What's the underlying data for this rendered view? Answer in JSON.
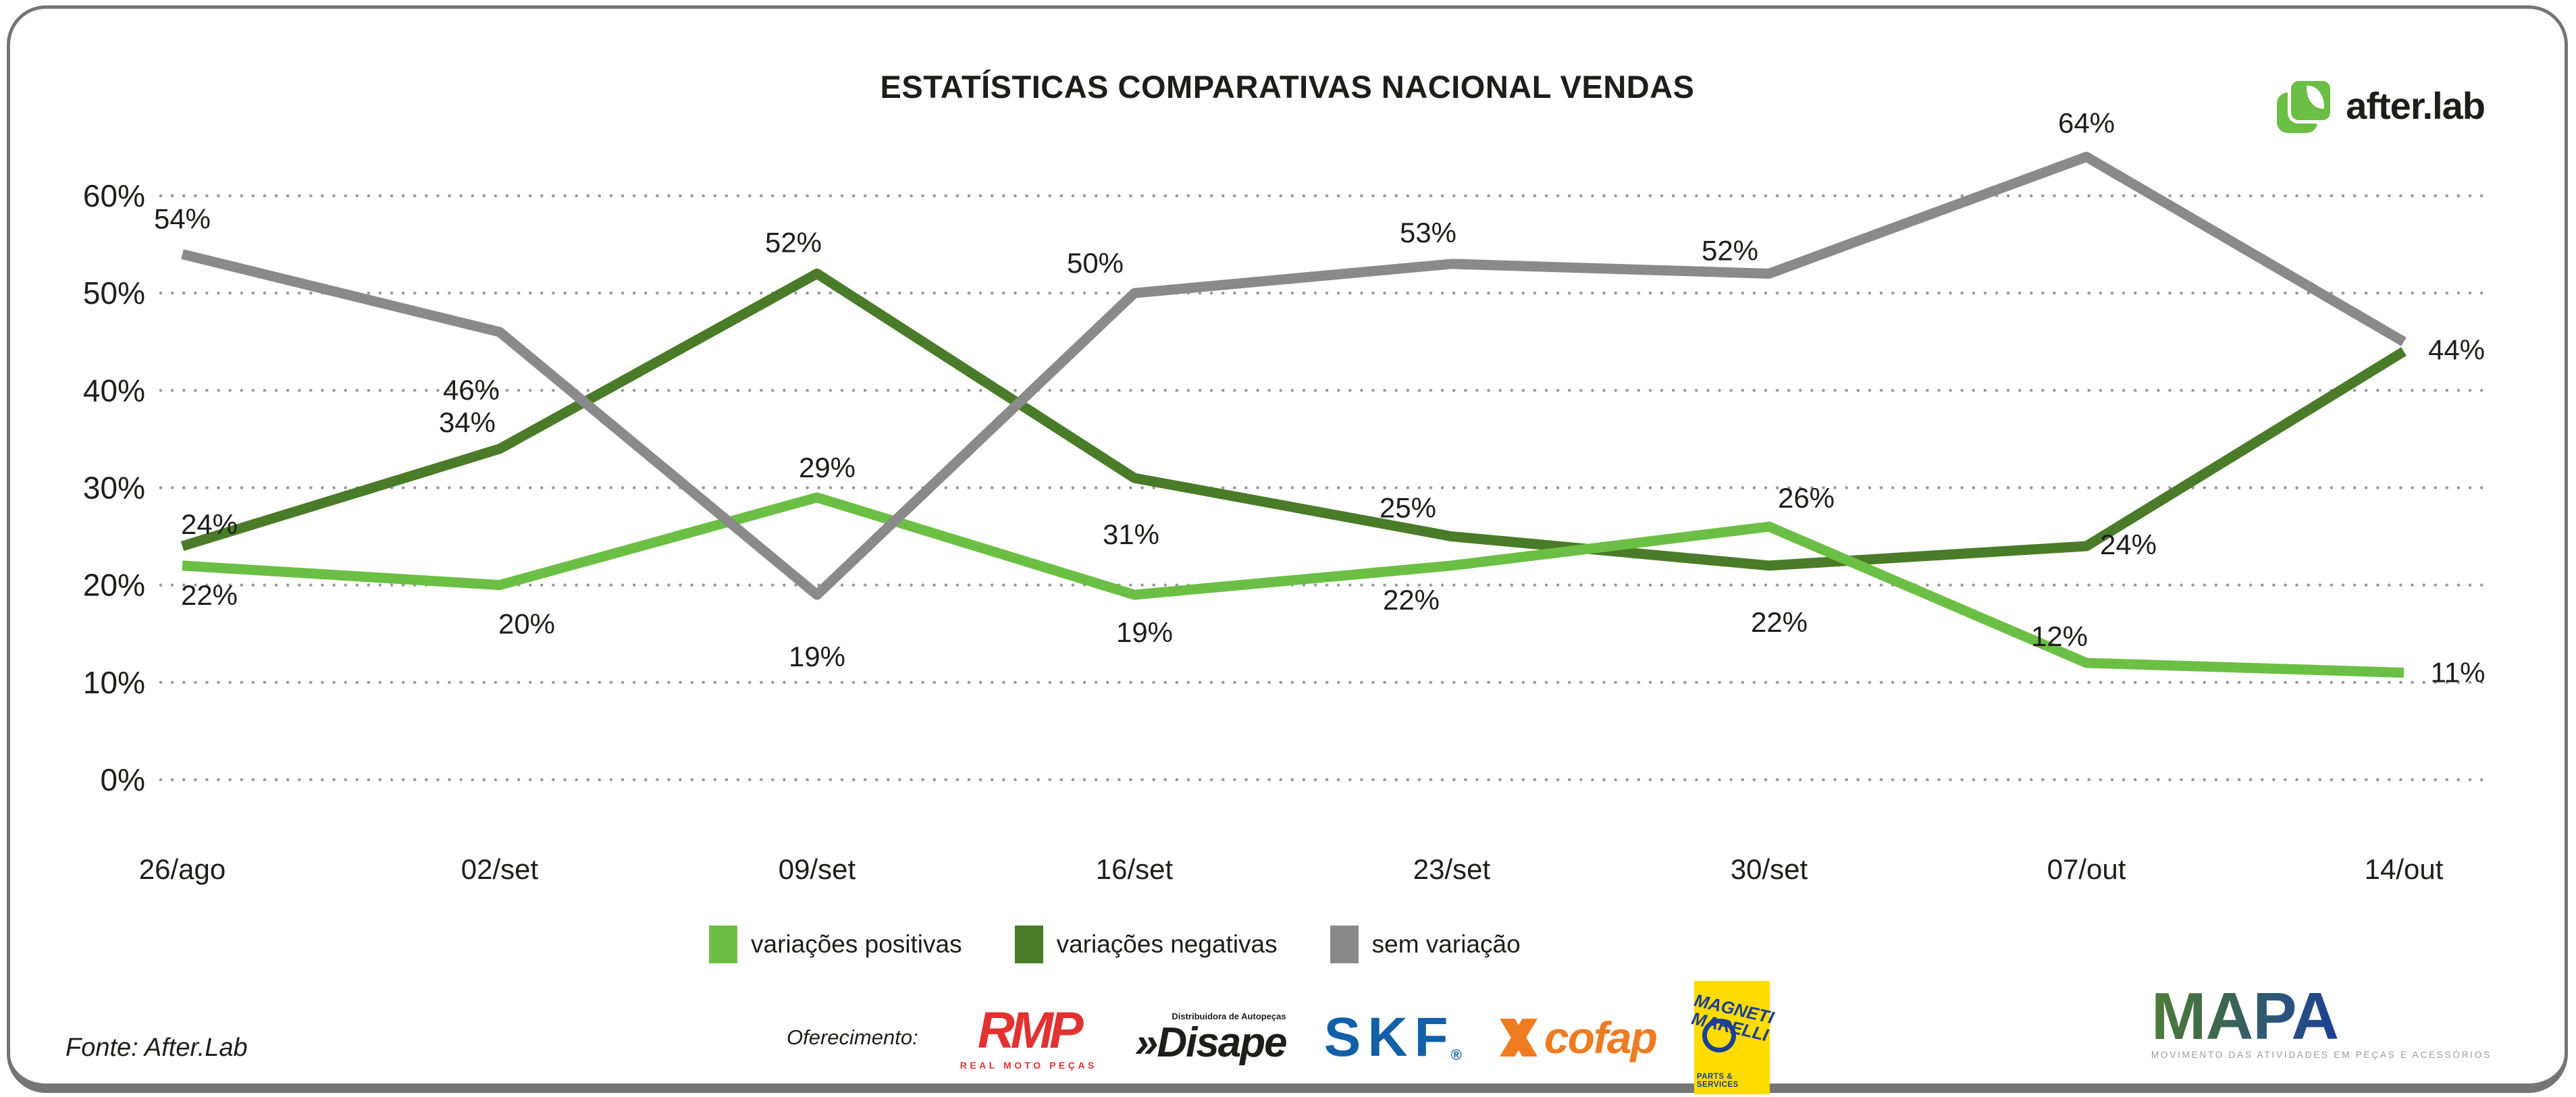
{
  "card": {
    "title": "ESTATÍSTICAS COMPARATIVAS NACIONAL VENDAS",
    "brand": {
      "name": "after.lab"
    },
    "footer": {
      "fonte": "Fonte: After.Lab",
      "oferecimento_label": "Oferecimento:",
      "sponsors": {
        "rmp": {
          "name": "RMP",
          "subtitle": "REAL MOTO PEÇAS"
        },
        "disape": {
          "name": "Disape",
          "prefix": "»",
          "subtitle": "Distribuidora de Autopeças"
        },
        "skf": {
          "name": "SKF",
          "registered": "®"
        },
        "cofap": {
          "name": "cofap"
        },
        "magneti": {
          "line1": "MAGNETI",
          "line2": "MARELLI",
          "subtitle": "PARTS & SERVICES"
        },
        "mapa": {
          "name": "MAPA",
          "subtitle": "MOVIMENTO DAS ATIVIDADES EM PEÇAS E ACESSÓRIOS"
        }
      }
    }
  },
  "chart_data": {
    "type": "line",
    "title": "ESTATÍSTICAS COMPARATIVAS NACIONAL VENDAS",
    "categories": [
      "26/ago",
      "02/set",
      "09/set",
      "16/set",
      "23/set",
      "30/set",
      "07/out",
      "14/out"
    ],
    "y_ticks": [
      "60%",
      "50%",
      "40%",
      "30%",
      "20%",
      "10%",
      "0%"
    ],
    "ylim": [
      0,
      60
    ],
    "grid": "horizontal-dotted",
    "legend_position": "bottom",
    "series": [
      {
        "name": "variações positivas",
        "color": "#6CBF45",
        "values": [
          22,
          20,
          29,
          19,
          22,
          26,
          12,
          11
        ],
        "labels": [
          "22%",
          "20%",
          "29%",
          "19%",
          "22%",
          "26%",
          "12%",
          "11%"
        ]
      },
      {
        "name": "variações negativas",
        "color": "#4A7B28",
        "values": [
          24,
          34,
          52,
          31,
          25,
          22,
          24,
          44
        ],
        "labels": [
          "24%",
          "34%",
          "52%",
          "31%",
          "25%",
          "22%",
          "24%",
          "44%"
        ]
      },
      {
        "name": "sem variação",
        "color": "#8A8A8A",
        "values": [
          54,
          46,
          19,
          50,
          53,
          52,
          64,
          45
        ],
        "labels": [
          "54%",
          "46%",
          "19%",
          "50%",
          "53%",
          "52%",
          "64%",
          ""
        ]
      }
    ]
  }
}
